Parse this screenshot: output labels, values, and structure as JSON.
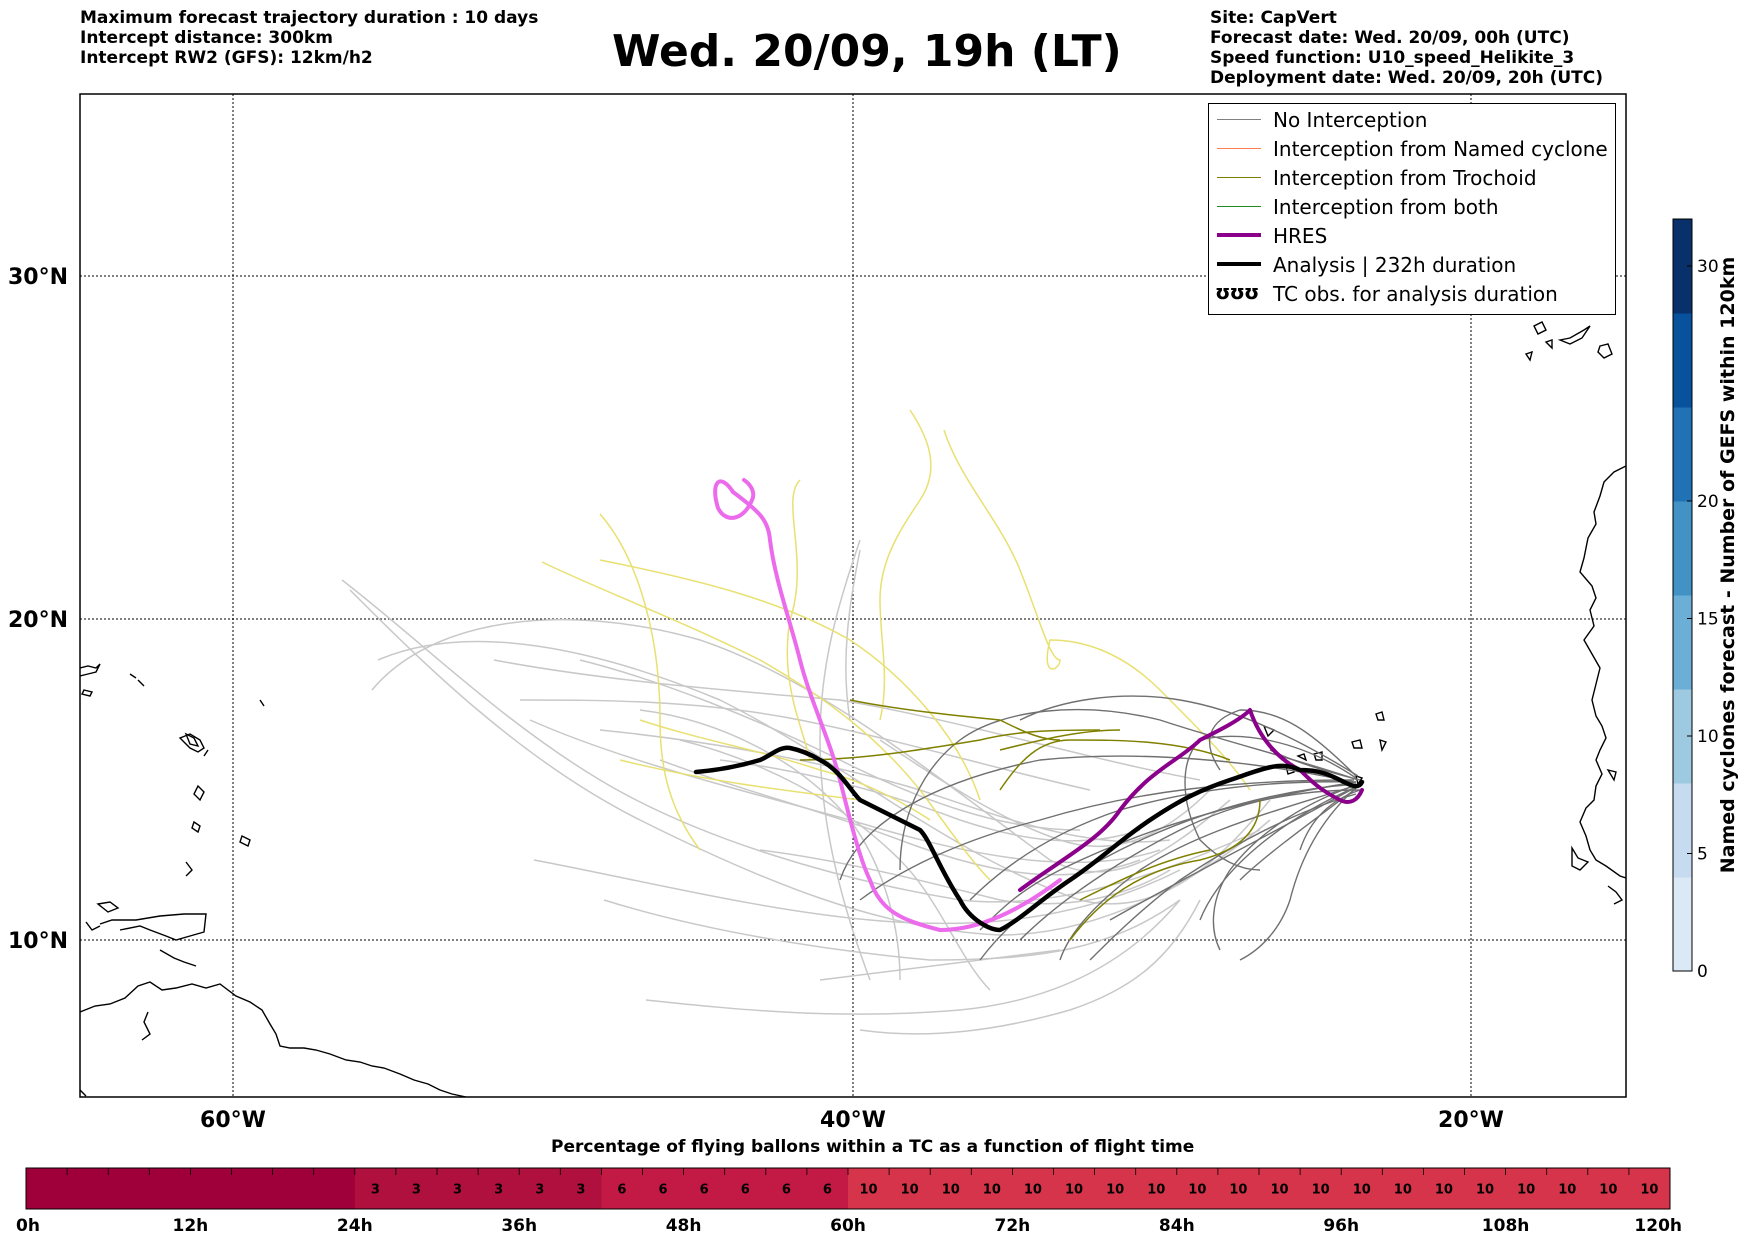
{
  "header": {
    "left_lines": [
      "Maximum forecast trajectory duration : 10 days",
      "Intercept distance: 300km",
      "Intercept RW2 (GFS):  12km/h2"
    ],
    "title": "Wed. 20/09, 19h (LT)",
    "right_lines": [
      "Site: CapVert",
      "Forecast date: Wed. 20/09, 00h (UTC)",
      "Speed function: U10_speed_Helikite_3",
      "Deployment date: Wed. 20/09, 20h (UTC)"
    ]
  },
  "map": {
    "lat_labels": [
      "30°N",
      "20°N",
      "10°N"
    ],
    "lon_labels": [
      "60°W",
      "40°W",
      "20°W"
    ],
    "gridlines": true
  },
  "legend": {
    "items": [
      {
        "label": "No Interception",
        "color": "#808080"
      },
      {
        "label": "Interception from Named cyclone",
        "color": "#ff7f50"
      },
      {
        "label": "Interception from Trochoid",
        "color": "#808000"
      },
      {
        "label": "Interception from both",
        "color": "#228b22"
      },
      {
        "label": "HRES",
        "color": "#8b008b"
      },
      {
        "label": "Analysis | 232h duration",
        "color": "#000000"
      }
    ],
    "tc_symbol": "ʊʊʊ",
    "tc_label": "TC obs. for analysis duration"
  },
  "colorbar": {
    "title": "Named cyclones forecast - Number of GEFS within 120km",
    "ticks": [
      "0",
      "5",
      "10",
      "15",
      "20",
      "30"
    ],
    "tick_values": [
      0,
      5,
      10,
      15,
      20,
      30
    ],
    "max": 32
  },
  "timebar": {
    "title": "Percentage of flying ballons within a TC as a function of flight time",
    "tick_labels": [
      "0h",
      "12h",
      "24h",
      "36h",
      "48h",
      "60h",
      "72h",
      "84h",
      "96h",
      "108h",
      "120h"
    ],
    "cells": [
      "",
      "",
      "",
      "",
      "",
      "",
      "",
      "",
      "3",
      "3",
      "3",
      "3",
      "3",
      "3",
      "6",
      "6",
      "6",
      "6",
      "6",
      "6",
      "10",
      "10",
      "10",
      "10",
      "10",
      "10",
      "10",
      "10",
      "10",
      "10",
      "10",
      "10",
      "10",
      "10",
      "10",
      "10",
      "10",
      "10",
      "10",
      "10"
    ],
    "colors": {
      "0": "#a0003a",
      "3": "#b0103e",
      "6": "#c21a45",
      "10": "#d6344a"
    }
  }
}
